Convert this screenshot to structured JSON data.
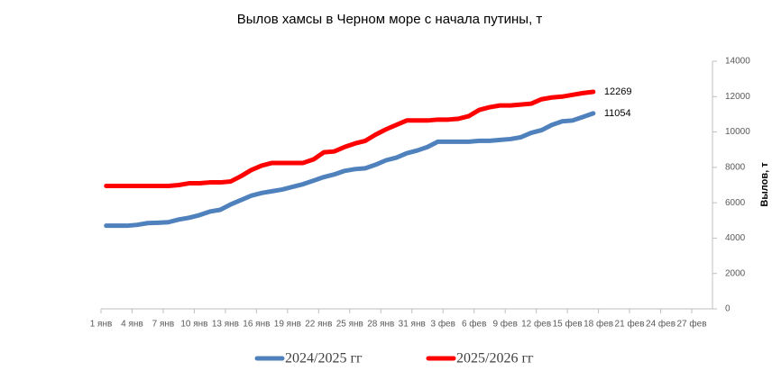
{
  "chart_data": {
    "type": "line",
    "title": "Вылов хамсы в Черном море с начала путины, т",
    "y_axis_label": "Вылов, т",
    "y_axis_side": "right",
    "grid": false,
    "legend": "bottom",
    "categories": [
      "1 янв",
      null,
      null,
      "4 янв",
      null,
      null,
      "7 янв",
      null,
      null,
      "10 янв",
      null,
      null,
      "13 янв",
      null,
      null,
      "16 янв",
      null,
      null,
      "19 янв",
      null,
      null,
      "22 янв",
      null,
      null,
      "25 янв",
      null,
      null,
      "28 янв",
      null,
      null,
      "31 янв",
      null,
      null,
      "3 фев",
      null,
      null,
      "6 фев",
      null,
      null,
      "9 фев",
      null,
      null,
      "12 фев",
      null,
      null,
      "15 фев",
      null,
      null,
      "18 фев",
      null,
      null,
      "21 фев",
      null,
      null,
      "24 фев",
      null,
      null,
      "27 фев",
      null
    ],
    "ylim": [
      0,
      14000
    ],
    "yticks": [
      0,
      2000,
      4000,
      6000,
      8000,
      10000,
      12000,
      14000
    ],
    "series": [
      {
        "name": "2024/2025 гг",
        "color": "#4f81bd",
        "values": [
          4700,
          4700,
          4700,
          4750,
          4850,
          4870,
          4900,
          5050,
          5150,
          5300,
          5500,
          5600,
          5900,
          6150,
          6400,
          6550,
          6650,
          6750,
          6900,
          7050,
          7250,
          7450,
          7600,
          7800,
          7900,
          7950,
          8150,
          8400,
          8550,
          8800,
          8950,
          9150,
          9450,
          9450,
          9450,
          9450,
          9500,
          9500,
          9550,
          9600,
          9700,
          9950,
          10100,
          10400,
          10600,
          10650,
          10850,
          11054,
          null,
          null,
          null,
          null,
          null,
          null,
          null,
          null,
          null,
          null,
          null
        ]
      },
      {
        "name": "2025/2026 гг",
        "color": "#ff0000",
        "values": [
          6950,
          6950,
          6950,
          6950,
          6950,
          6950,
          6950,
          7000,
          7100,
          7100,
          7150,
          7150,
          7200,
          7500,
          7850,
          8100,
          8250,
          8250,
          8250,
          8250,
          8450,
          8850,
          8900,
          9150,
          9350,
          9500,
          9850,
          10150,
          10400,
          10650,
          10650,
          10650,
          10700,
          10700,
          10750,
          10900,
          11250,
          11400,
          11500,
          11500,
          11550,
          11600,
          11850,
          11950,
          12000,
          12100,
          12200,
          12269,
          null,
          null,
          null,
          null,
          null,
          null,
          null,
          null,
          null,
          null,
          null
        ]
      }
    ]
  }
}
